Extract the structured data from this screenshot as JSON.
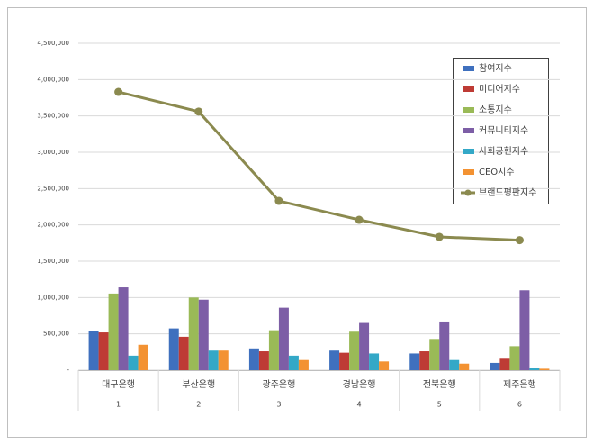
{
  "chart_data": {
    "type": "bar-line",
    "categories": [
      "대구은행",
      "부산은행",
      "광주은행",
      "경남은행",
      "전북은행",
      "제주은행"
    ],
    "category_numbers": [
      "1",
      "2",
      "3",
      "4",
      "5",
      "6"
    ],
    "ylim": [
      0,
      4500000
    ],
    "yticks": [
      {
        "value": 0,
        "label": "-"
      },
      {
        "value": 500000,
        "label": "500,000"
      },
      {
        "value": 1000000,
        "label": "1,000,000"
      },
      {
        "value": 1500000,
        "label": "1,500,000"
      },
      {
        "value": 2000000,
        "label": "2,000,000"
      },
      {
        "value": 2500000,
        "label": "2,500,000"
      },
      {
        "value": 3000000,
        "label": "3,000,000"
      },
      {
        "value": 3500000,
        "label": "3,500,000"
      },
      {
        "value": 4000000,
        "label": "4,000,000"
      },
      {
        "value": 4500000,
        "label": "4,500,000"
      }
    ],
    "grid": true,
    "legend": "upper-right",
    "series": [
      {
        "name": "참여지수",
        "type": "bar",
        "color": "#3f70be",
        "values": [
          545000,
          575000,
          300000,
          270000,
          230000,
          100000
        ]
      },
      {
        "name": "미디어지수",
        "type": "bar",
        "color": "#be3b35",
        "values": [
          520000,
          460000,
          260000,
          240000,
          260000,
          170000
        ]
      },
      {
        "name": "소통지수",
        "type": "bar",
        "color": "#9aba57",
        "values": [
          1055000,
          1000000,
          550000,
          530000,
          430000,
          330000
        ]
      },
      {
        "name": "커뮤니티지수",
        "type": "bar",
        "color": "#7d5ea6",
        "values": [
          1140000,
          970000,
          860000,
          650000,
          670000,
          1100000
        ]
      },
      {
        "name": "사회공헌지수",
        "type": "bar",
        "color": "#33a8c7",
        "values": [
          200000,
          270000,
          200000,
          230000,
          140000,
          30000
        ]
      },
      {
        "name": "CEO지수",
        "type": "bar",
        "color": "#f39232",
        "values": [
          350000,
          270000,
          140000,
          120000,
          90000,
          20000
        ]
      },
      {
        "name": "브랜드평판지수",
        "type": "line",
        "color": "#8b8a4f",
        "values": [
          3830000,
          3560000,
          2330000,
          2070000,
          1835000,
          1790000
        ]
      }
    ]
  }
}
